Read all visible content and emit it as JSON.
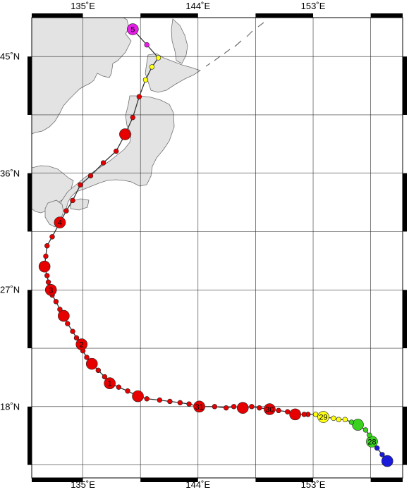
{
  "map": {
    "lon_range": [
      131,
      160
    ],
    "lat_range": [
      12.5,
      48
    ],
    "graticule_step_deg": 4.5,
    "colors": {
      "land": "#e3e3e3",
      "coast": "#707070",
      "grid": "#303030",
      "track": "#333333",
      "frame": "#000000"
    }
  },
  "axes": {
    "lon_ticks": [
      {
        "lon": 135,
        "label": "135˚E"
      },
      {
        "lon": 144,
        "label": "144˚E"
      },
      {
        "lon": 153,
        "label": "153˚E"
      }
    ],
    "lat_ticks": [
      {
        "lat": 45,
        "label": "45˚N"
      },
      {
        "lat": 36,
        "label": "36˚N"
      },
      {
        "lat": 27,
        "label": "27˚N"
      },
      {
        "lat": 18,
        "label": "18˚N"
      }
    ]
  },
  "legend_colors": {
    "blue": "#1a1adb",
    "green": "#3ad21e",
    "yellow": "#ffff14",
    "red": "#e60000",
    "magenta": "#e61ee6"
  },
  "track": [
    {
      "lon": 158.8,
      "lat": 13.8,
      "c": "blue",
      "s": "L"
    },
    {
      "lon": 158.4,
      "lat": 14.3,
      "c": "blue",
      "s": "S"
    },
    {
      "lon": 158.0,
      "lat": 14.8,
      "c": "blue",
      "s": "S"
    },
    {
      "lon": 157.6,
      "lat": 15.3,
      "c": "green",
      "s": "L",
      "label": "28"
    },
    {
      "lon": 157.4,
      "lat": 15.8,
      "c": "green",
      "s": "S"
    },
    {
      "lon": 157.1,
      "lat": 16.2,
      "c": "green",
      "s": "S"
    },
    {
      "lon": 156.5,
      "lat": 16.6,
      "c": "green",
      "s": "L"
    },
    {
      "lon": 156.0,
      "lat": 16.8,
      "c": "green",
      "s": "S"
    },
    {
      "lon": 155.5,
      "lat": 17.0,
      "c": "yellow",
      "s": "S"
    },
    {
      "lon": 155.0,
      "lat": 17.0,
      "c": "yellow",
      "s": "S"
    },
    {
      "lon": 154.6,
      "lat": 17.1,
      "c": "yellow",
      "s": "S"
    },
    {
      "lon": 153.8,
      "lat": 17.2,
      "c": "yellow",
      "s": "L",
      "label": "29"
    },
    {
      "lon": 153.2,
      "lat": 17.4,
      "c": "yellow",
      "s": "S"
    },
    {
      "lon": 152.6,
      "lat": 17.4,
      "c": "red",
      "s": "S"
    },
    {
      "lon": 152.3,
      "lat": 17.4,
      "c": "red",
      "s": "S"
    },
    {
      "lon": 151.6,
      "lat": 17.4,
      "c": "red",
      "s": "L"
    },
    {
      "lon": 151.0,
      "lat": 17.6,
      "c": "red",
      "s": "S"
    },
    {
      "lon": 150.3,
      "lat": 17.7,
      "c": "red",
      "s": "S"
    },
    {
      "lon": 149.6,
      "lat": 17.8,
      "c": "red",
      "s": "L",
      "label": "30"
    },
    {
      "lon": 148.8,
      "lat": 17.9,
      "c": "red",
      "s": "S"
    },
    {
      "lon": 148.2,
      "lat": 18.0,
      "c": "red",
      "s": "S"
    },
    {
      "lon": 147.5,
      "lat": 17.9,
      "c": "red",
      "s": "L"
    },
    {
      "lon": 146.8,
      "lat": 18.0,
      "c": "red",
      "s": "S"
    },
    {
      "lon": 146.2,
      "lat": 17.9,
      "c": "red",
      "s": "S"
    },
    {
      "lon": 145.3,
      "lat": 18.0,
      "c": "red",
      "s": "S"
    },
    {
      "lon": 144.1,
      "lat": 18.0,
      "c": "red",
      "s": "L",
      "label": "31"
    },
    {
      "lon": 143.3,
      "lat": 18.2,
      "c": "red",
      "s": "S"
    },
    {
      "lon": 142.6,
      "lat": 18.3,
      "c": "red",
      "s": "S"
    },
    {
      "lon": 141.8,
      "lat": 18.4,
      "c": "red",
      "s": "S"
    },
    {
      "lon": 141.0,
      "lat": 18.5,
      "c": "red",
      "s": "S"
    },
    {
      "lon": 140.0,
      "lat": 18.6,
      "c": "red",
      "s": "S"
    },
    {
      "lon": 139.3,
      "lat": 18.8,
      "c": "red",
      "s": "L"
    },
    {
      "lon": 138.5,
      "lat": 19.2,
      "c": "red",
      "s": "S"
    },
    {
      "lon": 137.8,
      "lat": 19.5,
      "c": "red",
      "s": "S"
    },
    {
      "lon": 137.1,
      "lat": 19.8,
      "c": "red",
      "s": "L",
      "label": "1"
    },
    {
      "lon": 136.7,
      "lat": 20.3,
      "c": "red",
      "s": "S"
    },
    {
      "lon": 136.2,
      "lat": 20.8,
      "c": "red",
      "s": "S"
    },
    {
      "lon": 135.7,
      "lat": 21.3,
      "c": "red",
      "s": "L"
    },
    {
      "lon": 135.3,
      "lat": 21.8,
      "c": "red",
      "s": "S"
    },
    {
      "lon": 135.0,
      "lat": 22.3,
      "c": "red",
      "s": "S"
    },
    {
      "lon": 134.9,
      "lat": 22.8,
      "c": "red",
      "s": "L",
      "label": "2"
    },
    {
      "lon": 134.5,
      "lat": 23.3,
      "c": "red",
      "s": "S"
    },
    {
      "lon": 134.2,
      "lat": 23.8,
      "c": "red",
      "s": "S"
    },
    {
      "lon": 133.8,
      "lat": 24.4,
      "c": "red",
      "s": "S"
    },
    {
      "lon": 133.5,
      "lat": 25.0,
      "c": "red",
      "s": "L"
    },
    {
      "lon": 133.2,
      "lat": 25.5,
      "c": "red",
      "s": "S"
    },
    {
      "lon": 132.9,
      "lat": 26.1,
      "c": "red",
      "s": "S"
    },
    {
      "lon": 132.6,
      "lat": 26.6,
      "c": "red",
      "s": "S"
    },
    {
      "lon": 132.5,
      "lat": 27.0,
      "c": "red",
      "s": "L",
      "label": "3"
    },
    {
      "lon": 132.3,
      "lat": 27.6,
      "c": "red",
      "s": "S"
    },
    {
      "lon": 132.2,
      "lat": 28.1,
      "c": "red",
      "s": "S"
    },
    {
      "lon": 132.0,
      "lat": 28.8,
      "c": "red",
      "s": "L"
    },
    {
      "lon": 132.1,
      "lat": 29.6,
      "c": "red",
      "s": "S"
    },
    {
      "lon": 132.2,
      "lat": 30.4,
      "c": "red",
      "s": "S"
    },
    {
      "lon": 132.6,
      "lat": 31.1,
      "c": "red",
      "s": "S"
    },
    {
      "lon": 133.2,
      "lat": 32.2,
      "c": "red",
      "s": "L",
      "label": "4"
    },
    {
      "lon": 133.7,
      "lat": 33.1,
      "c": "red",
      "s": "S"
    },
    {
      "lon": 134.2,
      "lat": 33.9,
      "c": "red",
      "s": "S"
    },
    {
      "lon": 134.8,
      "lat": 35.1,
      "c": "red",
      "s": "S"
    },
    {
      "lon": 135.6,
      "lat": 35.8,
      "c": "red",
      "s": "S"
    },
    {
      "lon": 136.6,
      "lat": 36.8,
      "c": "red",
      "s": "S"
    },
    {
      "lon": 137.6,
      "lat": 37.7,
      "c": "red",
      "s": "S"
    },
    {
      "lon": 138.3,
      "lat": 39.0,
      "c": "red",
      "s": "L"
    },
    {
      "lon": 138.9,
      "lat": 40.3,
      "c": "red",
      "s": "S"
    },
    {
      "lon": 139.4,
      "lat": 41.9,
      "c": "red",
      "s": "S"
    },
    {
      "lon": 139.9,
      "lat": 43.2,
      "c": "yellow",
      "s": "S"
    },
    {
      "lon": 140.4,
      "lat": 44.2,
      "c": "yellow",
      "s": "S"
    },
    {
      "lon": 140.9,
      "lat": 44.9,
      "c": "yellow",
      "s": "S"
    },
    {
      "lon": 140.0,
      "lat": 45.9,
      "c": "magenta",
      "s": "S"
    },
    {
      "lon": 138.9,
      "lat": 47.1,
      "c": "magenta",
      "s": "L",
      "label": "5"
    }
  ]
}
